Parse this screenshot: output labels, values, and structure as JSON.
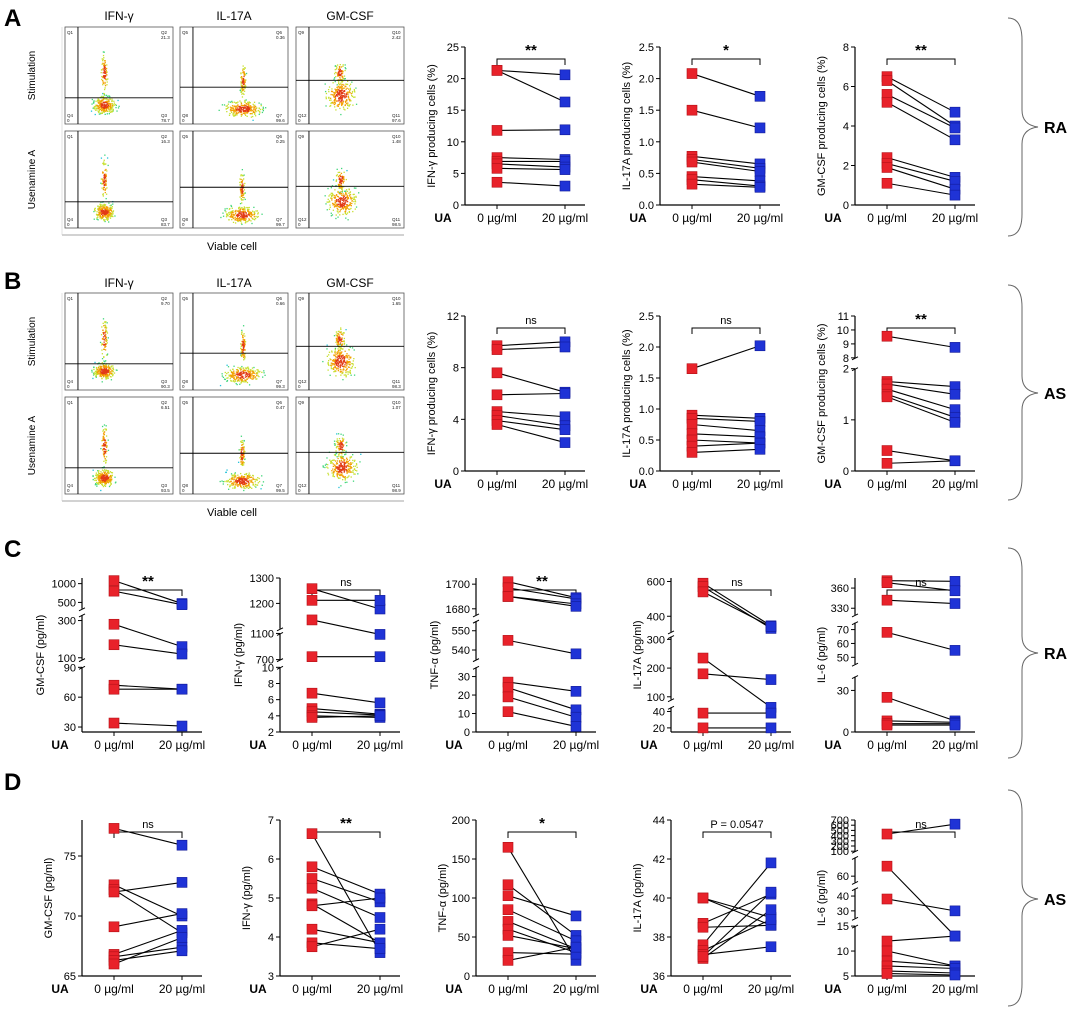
{
  "figure": {
    "panel_labels": [
      "A",
      "B",
      "C",
      "D"
    ],
    "group_labels": [
      "RA",
      "AS",
      "RA",
      "AS"
    ],
    "treatment_label": "UA",
    "dose_labels": [
      "0 µg/ml",
      "20 µg/ml"
    ]
  },
  "flow": [
    {
      "panel": "A",
      "columns": [
        "IFN-γ",
        "IL-17A",
        "GM-CSF"
      ],
      "rows": [
        "Stimulation",
        "Usenamine A"
      ],
      "xlabel": "Viable cell",
      "quadrants": [
        [
          {
            "tl": "Q1",
            "tr": "Q2",
            "br": "Q3",
            "bl": "Q4",
            "value_tr": "21.3",
            "value_br": "78.7",
            "value_bl": "0"
          },
          {
            "tl": "Q5",
            "tr": "Q6",
            "br": "Q7",
            "bl": "Q8",
            "value_tr": "0.36",
            "value_br": "99.6",
            "value_bl": "0"
          },
          {
            "tl": "Q9",
            "tr": "Q10",
            "br": "Q11",
            "bl": "Q12",
            "value_tr": "2.42",
            "value_br": "97.6",
            "value_bl": "0"
          }
        ],
        [
          {
            "tl": "Q1",
            "tr": "Q2",
            "br": "Q3",
            "bl": "Q4",
            "value_tr": "16.3",
            "value_br": "83.7",
            "value_bl": "0"
          },
          {
            "tl": "Q5",
            "tr": "Q6",
            "br": "Q7",
            "bl": "Q8",
            "value_tr": "0.25",
            "value_br": "99.7",
            "value_bl": "0"
          },
          {
            "tl": "Q9",
            "tr": "Q10",
            "br": "Q11",
            "bl": "Q12",
            "value_tr": "1.48",
            "value_br": "98.5",
            "value_bl": "0"
          }
        ]
      ]
    },
    {
      "panel": "B",
      "columns": [
        "IFN-γ",
        "IL-17A",
        "GM-CSF"
      ],
      "rows": [
        "Stimulation",
        "Usenamine A"
      ],
      "xlabel": "Viable cell",
      "quadrants": [
        [
          {
            "tl": "Q1",
            "tr": "Q2",
            "br": "Q3",
            "bl": "Q4",
            "value_tr": "9.70",
            "value_br": "90.3",
            "value_bl": "0"
          },
          {
            "tl": "Q5",
            "tr": "Q6",
            "br": "Q7",
            "bl": "Q8",
            "value_tr": "0.66",
            "value_br": "99.3",
            "value_bl": "0"
          },
          {
            "tl": "Q9",
            "tr": "Q10",
            "br": "Q11",
            "bl": "Q12",
            "value_tr": "1.65",
            "value_br": "98.3",
            "value_bl": "0"
          }
        ],
        [
          {
            "tl": "Q1",
            "tr": "Q2",
            "br": "Q3",
            "bl": "Q4",
            "value_tr": "6.51",
            "value_br": "93.5",
            "value_bl": "0"
          },
          {
            "tl": "Q5",
            "tr": "Q6",
            "br": "Q7",
            "bl": "Q8",
            "value_tr": "0.47",
            "value_br": "99.5",
            "value_bl": "0"
          },
          {
            "tl": "Q9",
            "tr": "Q10",
            "br": "Q11",
            "bl": "Q12",
            "value_tr": "1.07",
            "value_br": "98.9",
            "value_bl": "0"
          }
        ]
      ]
    }
  ],
  "chart_data": [
    {
      "id": "A1",
      "type": "line",
      "ylabel": "IFN-γ producing cells (%)",
      "yticks": [
        "0",
        "5",
        "10",
        "15",
        "20",
        "25"
      ],
      "ylim": [
        0,
        25
      ],
      "significance": "**",
      "pairs": [
        [
          21.3,
          20.6
        ],
        [
          21.3,
          16.3
        ],
        [
          11.8,
          11.9
        ],
        [
          7.5,
          7.2
        ],
        [
          6.9,
          6.9
        ],
        [
          6.5,
          6.0
        ],
        [
          5.8,
          5.6
        ],
        [
          3.6,
          3.0
        ]
      ]
    },
    {
      "id": "A2",
      "type": "line",
      "ylabel": "IL-17A producing cells (%)",
      "yticks": [
        "0.0",
        "0.5",
        "1.0",
        "1.5",
        "2.0",
        "2.5"
      ],
      "ylim": [
        0,
        2.5
      ],
      "significance": "*",
      "pairs": [
        [
          2.08,
          1.72
        ],
        [
          1.5,
          1.22
        ],
        [
          0.77,
          0.65
        ],
        [
          0.72,
          0.58
        ],
        [
          0.68,
          0.53
        ],
        [
          0.45,
          0.38
        ],
        [
          0.4,
          0.3
        ],
        [
          0.33,
          0.28
        ]
      ]
    },
    {
      "id": "A3",
      "type": "line",
      "ylabel": "GM-CSF producing cells (%)",
      "yticks": [
        "0",
        "2",
        "4",
        "6",
        "8"
      ],
      "ylim": [
        0,
        8
      ],
      "significance": "**",
      "pairs": [
        [
          6.5,
          4.7
        ],
        [
          6.3,
          4.0
        ],
        [
          5.6,
          3.9
        ],
        [
          5.2,
          3.3
        ],
        [
          2.4,
          1.4
        ],
        [
          2.1,
          1.2
        ],
        [
          1.9,
          0.8
        ],
        [
          1.1,
          0.5
        ]
      ]
    },
    {
      "id": "B1",
      "type": "line",
      "ylabel": "IFN-γ producing cells (%)",
      "yticks": [
        "0",
        "4",
        "8",
        "12"
      ],
      "ylim": [
        0,
        12
      ],
      "significance": "ns",
      "pairs": [
        [
          9.7,
          10.0
        ],
        [
          9.4,
          9.6
        ],
        [
          7.6,
          6.1
        ],
        [
          5.9,
          6.0
        ],
        [
          4.6,
          4.2
        ],
        [
          4.3,
          3.5
        ],
        [
          3.9,
          3.2
        ],
        [
          3.6,
          2.2
        ]
      ]
    },
    {
      "id": "B2",
      "type": "line",
      "ylabel": "IL-17A producing cells (%)",
      "yticks": [
        "0.0",
        "0.5",
        "1.0",
        "1.5",
        "2.0",
        "2.5"
      ],
      "ylim": [
        0,
        2.5
      ],
      "significance": "ns",
      "pairs": [
        [
          1.65,
          2.02
        ],
        [
          0.9,
          0.85
        ],
        [
          0.85,
          0.8
        ],
        [
          0.75,
          0.65
        ],
        [
          0.6,
          0.55
        ],
        [
          0.5,
          0.45
        ],
        [
          0.4,
          0.45
        ],
        [
          0.3,
          0.35
        ]
      ]
    },
    {
      "id": "B3",
      "type": "line",
      "ylabel": "GM-CSF producing cells (%)",
      "yticks": [
        "0",
        "1",
        "2",
        "8",
        "9",
        "10",
        "11"
      ],
      "broken_axis": {
        "lower": [
          0,
          2
        ],
        "upper": [
          8,
          11
        ]
      },
      "significance": "**",
      "pairs": [
        [
          9.55,
          8.75
        ],
        [
          1.75,
          1.65
        ],
        [
          1.7,
          1.5
        ],
        [
          1.6,
          1.2
        ],
        [
          1.5,
          1.05
        ],
        [
          1.45,
          0.95
        ],
        [
          0.4,
          0.2
        ],
        [
          0.15,
          0.2
        ]
      ]
    },
    {
      "id": "C1",
      "type": "line",
      "ylabel": "GM-CSF (pg/ml)",
      "yticks": [
        "30",
        "60",
        "90",
        "100",
        "300",
        "500",
        "1000"
      ],
      "broken_axis": {
        "segments": [
          [
            25,
            90
          ],
          [
            90,
            330
          ],
          [
            330,
            1150
          ]
        ]
      },
      "significance": "**",
      "pairs": [
        [
          1080,
          470
        ],
        [
          800,
          440
        ],
        [
          280,
          160
        ],
        [
          170,
          120
        ],
        [
          72,
          68
        ],
        [
          68,
          68
        ],
        [
          34,
          31
        ]
      ]
    },
    {
      "id": "C2",
      "type": "line",
      "ylabel": "IFN-γ (pg/ml)",
      "yticks": [
        "2",
        "4",
        "6",
        "8",
        "10",
        "700",
        "1100",
        "1200",
        "1300"
      ],
      "broken_axis": {
        "segments": [
          [
            2,
            10
          ],
          [
            700,
            1100
          ],
          [
            1100,
            1300
          ]
        ]
      },
      "significance": "ns",
      "pairs": [
        [
          1258,
          1178
        ],
        [
          1212,
          1212
        ],
        [
          1135,
          1085
        ],
        [
          745,
          745
        ],
        [
          6.8,
          5.6
        ],
        [
          4.9,
          4.2
        ],
        [
          4.5,
          4.1
        ],
        [
          4.0,
          3.8
        ],
        [
          3.8,
          4.0
        ]
      ]
    },
    {
      "id": "C3",
      "type": "line",
      "ylabel": "TNF-α (pg/ml)",
      "yticks": [
        "0",
        "10",
        "20",
        "30",
        "540",
        "550",
        "1680",
        "1700"
      ],
      "broken_axis": {
        "segments": [
          [
            0,
            35
          ],
          [
            535,
            555
          ],
          [
            1675,
            1705
          ]
        ]
      },
      "significance": "**",
      "pairs": [
        [
          1702,
          1689
        ],
        [
          1697,
          1688
        ],
        [
          1690,
          1684
        ],
        [
          1690,
          1682
        ],
        [
          545,
          538
        ],
        [
          27,
          22
        ],
        [
          24,
          12
        ],
        [
          19,
          8
        ],
        [
          11,
          3
        ]
      ]
    },
    {
      "id": "C4",
      "type": "line",
      "ylabel": "IL-17A (pg/ml)",
      "yticks": [
        "20",
        "40",
        "100",
        "200",
        "300",
        "400",
        "600"
      ],
      "broken_axis": {
        "segments": [
          [
            15,
            45
          ],
          [
            90,
            310
          ],
          [
            310,
            620
          ]
        ]
      },
      "significance": "ns",
      "pairs": [
        [
          590,
          345
        ],
        [
          570,
          330
        ],
        [
          540,
          340
        ],
        [
          235,
          80
        ],
        [
          180,
          160
        ],
        [
          38,
          38
        ],
        [
          20,
          20
        ]
      ]
    },
    {
      "id": "C5",
      "type": "line",
      "ylabel": "IL-6 (pg/ml)",
      "yticks": [
        "0",
        "30",
        "50",
        "60",
        "70",
        "330",
        "360"
      ],
      "broken_axis": {
        "segments": [
          [
            0,
            40
          ],
          [
            45,
            75
          ],
          [
            320,
            375
          ]
        ]
      },
      "significance": "ns",
      "pairs": [
        [
          371,
          370
        ],
        [
          368,
          356
        ],
        [
          342,
          337
        ],
        [
          68,
          55
        ],
        [
          25,
          8
        ],
        [
          8,
          7
        ],
        [
          6,
          6
        ],
        [
          5,
          5
        ]
      ]
    },
    {
      "id": "D1",
      "type": "line",
      "ylabel": "GM-CSF (pg/ml)",
      "yticks": [
        "65",
        "70",
        "75"
      ],
      "ylim": [
        65,
        78
      ],
      "significance": "ns",
      "pairs": [
        [
          77.3,
          75.9
        ],
        [
          72.6,
          70.0
        ],
        [
          72.2,
          68.6
        ],
        [
          72.0,
          72.8
        ],
        [
          69.1,
          70.2
        ],
        [
          66.8,
          68.8
        ],
        [
          66.6,
          67.4
        ],
        [
          66.3,
          67.1
        ],
        [
          66.0,
          68.2
        ]
      ]
    },
    {
      "id": "D2",
      "type": "line",
      "ylabel": "IFN-γ (pg/ml)",
      "yticks": [
        "3",
        "4",
        "5",
        "6",
        "7"
      ],
      "ylim": [
        3,
        7
      ],
      "significance": "**",
      "pairs": [
        [
          6.65,
          3.6
        ],
        [
          5.8,
          5.1
        ],
        [
          5.5,
          4.9
        ],
        [
          5.25,
          4.5
        ],
        [
          4.85,
          3.85
        ],
        [
          4.8,
          5.0
        ],
        [
          4.2,
          3.85
        ],
        [
          3.85,
          3.7
        ],
        [
          3.75,
          4.2
        ]
      ]
    },
    {
      "id": "D3",
      "type": "line",
      "ylabel": "TNF-α (pg/ml)",
      "yticks": [
        "0",
        "50",
        "100",
        "150",
        "200"
      ],
      "ylim": [
        0,
        200
      ],
      "significance": "*",
      "pairs": [
        [
          165,
          20
        ],
        [
          117,
          52
        ],
        [
          103,
          77
        ],
        [
          85,
          45
        ],
        [
          70,
          35
        ],
        [
          60,
          30
        ],
        [
          52,
          35
        ],
        [
          30,
          28
        ],
        [
          20,
          37
        ]
      ]
    },
    {
      "id": "D4",
      "type": "line",
      "ylabel": "IL-17A (pg/ml)",
      "yticks": [
        "36",
        "38",
        "40",
        "42",
        "44"
      ],
      "ylim": [
        36,
        44
      ],
      "significance": "P = 0.0547",
      "pairs": [
        [
          40.0,
          38.6
        ],
        [
          40.0,
          39.0
        ],
        [
          38.7,
          40.2
        ],
        [
          38.5,
          38.6
        ],
        [
          37.6,
          41.8
        ],
        [
          37.3,
          38.9
        ],
        [
          37.1,
          37.5
        ],
        [
          36.9,
          39.4
        ],
        [
          37.0,
          40.3
        ]
      ]
    },
    {
      "id": "D5",
      "type": "line",
      "ylabel": "IL-6 (pg/ml)",
      "yticks": [
        "5",
        "10",
        "15",
        "30",
        "40",
        "60",
        "100",
        "200",
        "300",
        "400",
        "500",
        "600",
        "700"
      ],
      "broken_axis": {
        "segments": [
          [
            5,
            15
          ],
          [
            25,
            45
          ],
          [
            55,
            75
          ],
          [
            100,
            700
          ]
        ]
      },
      "significance": "ns",
      "pairs": [
        [
          430,
          620
        ],
        [
          68,
          13
        ],
        [
          38,
          30
        ],
        [
          12,
          13
        ],
        [
          10,
          7
        ],
        [
          8,
          7
        ],
        [
          7,
          6.5
        ],
        [
          6,
          5.6
        ],
        [
          5.5,
          5.2
        ]
      ]
    }
  ]
}
